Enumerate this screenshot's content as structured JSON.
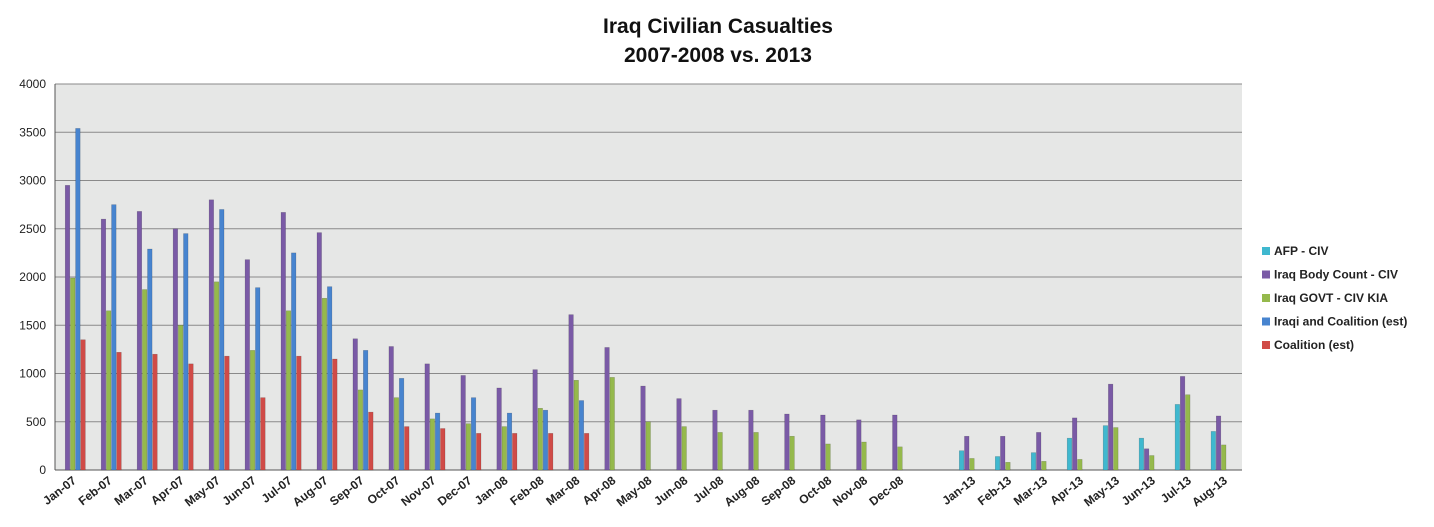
{
  "chart_data": {
    "type": "bar",
    "title_lines": [
      "Iraq Civilian Casualties",
      "2007-2008 vs. 2013"
    ],
    "xlabel": "",
    "ylabel": "",
    "ylim": [
      0,
      4000
    ],
    "yticks": [
      0,
      500,
      1000,
      1500,
      2000,
      2500,
      3000,
      3500,
      4000
    ],
    "grid": true,
    "legend_position": "right",
    "categories": [
      "Jan-07",
      "Feb-07",
      "Mar-07",
      "Apr-07",
      "May-07",
      "Jun-07",
      "Jul-07",
      "Aug-07",
      "Sep-07",
      "Oct-07",
      "Nov-07",
      "Dec-07",
      "Jan-08",
      "Feb-08",
      "Mar-08",
      "Apr-08",
      "May-08",
      "Jun-08",
      "Jul-08",
      "Aug-08",
      "Sep-08",
      "Oct-08",
      "Nov-08",
      "Dec-08",
      "",
      "Jan-13",
      "Feb-13",
      "Mar-13",
      "Apr-13",
      "May-13",
      "Jun-13",
      "Jul-13",
      "Aug-13"
    ],
    "series": [
      {
        "name": "AFP - CIV",
        "color": "#3fb8cf",
        "values": [
          null,
          null,
          null,
          null,
          null,
          null,
          null,
          null,
          null,
          null,
          null,
          null,
          null,
          null,
          null,
          null,
          null,
          null,
          null,
          null,
          null,
          null,
          null,
          null,
          null,
          200,
          140,
          180,
          330,
          460,
          330,
          680,
          400
        ]
      },
      {
        "name": "Iraq Body Count - CIV",
        "color": "#7a5aa6",
        "values": [
          2950,
          2600,
          2680,
          2500,
          2800,
          2180,
          2670,
          2460,
          1360,
          1280,
          1100,
          980,
          850,
          1040,
          1610,
          1270,
          870,
          740,
          620,
          620,
          580,
          570,
          520,
          570,
          null,
          350,
          350,
          390,
          540,
          890,
          220,
          970,
          560
        ]
      },
      {
        "name": "Iraq GOVT - CIV KIA",
        "color": "#95b94c",
        "values": [
          1990,
          1650,
          1870,
          1500,
          1950,
          1240,
          1650,
          1780,
          830,
          750,
          530,
          480,
          450,
          640,
          930,
          960,
          500,
          450,
          390,
          390,
          350,
          270,
          290,
          240,
          null,
          120,
          80,
          90,
          110,
          440,
          150,
          780,
          260
        ]
      },
      {
        "name": "Iraqi and Coalition (est)",
        "color": "#4784cf",
        "values": [
          3540,
          2750,
          2290,
          2450,
          2700,
          1890,
          2250,
          1900,
          1240,
          950,
          590,
          750,
          590,
          620,
          720,
          null,
          null,
          null,
          null,
          null,
          null,
          null,
          null,
          null,
          null,
          null,
          null,
          null,
          null,
          null,
          null,
          null,
          null
        ]
      },
      {
        "name": "Coalition (est)",
        "color": "#d04b47",
        "values": [
          1350,
          1220,
          1200,
          1100,
          1180,
          750,
          1180,
          1150,
          600,
          450,
          430,
          380,
          380,
          380,
          380,
          null,
          null,
          null,
          null,
          null,
          null,
          null,
          null,
          null,
          null,
          null,
          null,
          null,
          null,
          null,
          null,
          null,
          null
        ]
      }
    ]
  }
}
